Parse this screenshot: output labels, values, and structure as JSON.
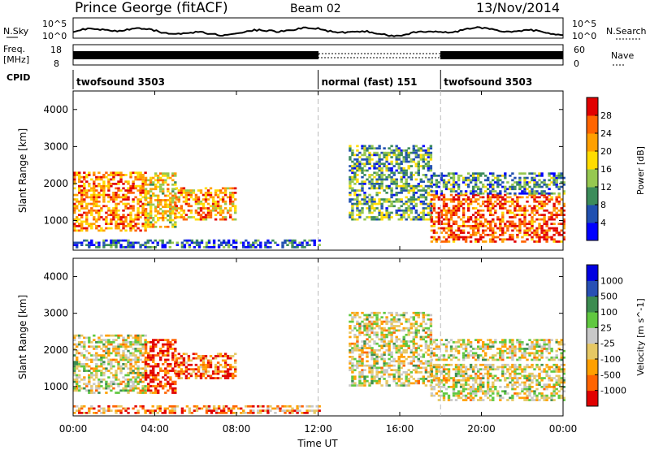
{
  "header": {
    "site": "Prince George (fitACF)",
    "beam": "Beam 02",
    "date": "13/Nov/2014"
  },
  "strip_left_labels": {
    "nsky": "N.Sky",
    "freq": "Freq.",
    "freq_unit": "[MHz]",
    "cpid": "CPID"
  },
  "strip_right_labels": {
    "nsearch": "N.Search",
    "nave": "Nave"
  },
  "strip_ticks": {
    "nsky_top": "10^5",
    "nsky_bottom": "10^0",
    "nsearch_top": "10^5",
    "nsearch_bottom": "10^0",
    "freq_top": "18",
    "freq_bottom": "8",
    "nave_top": "60",
    "nave_bottom": "0"
  },
  "cpid_segments": [
    {
      "label": "twofsound 3503",
      "start_h": 0,
      "end_h": 12
    },
    {
      "label": "normal (fast) 151",
      "start_h": 12,
      "end_h": 18
    },
    {
      "label": "twofsound 3503",
      "start_h": 18,
      "end_h": 24
    }
  ],
  "x_ticks": [
    "00:00",
    "04:00",
    "08:00",
    "12:00",
    "16:00",
    "20:00",
    "00:00"
  ],
  "x_label": "Time UT",
  "chart_data": [
    {
      "type": "heatmap",
      "title": "",
      "xlabel": "Time UT",
      "ylabel": "Slant Range [km]",
      "xlim_hours": [
        0,
        24
      ],
      "ylim": [
        200,
        4500
      ],
      "y_ticks": [
        1000,
        2000,
        3000,
        4000
      ],
      "colorbar": {
        "label": "Power [dB]",
        "ticks": [
          "4",
          "8",
          "12",
          "16",
          "20",
          "24",
          "28"
        ],
        "colors": [
          "#0000ff",
          "#2050b0",
          "#3c8c5a",
          "#96c850",
          "#ffdc00",
          "#ffa000",
          "#ff6400",
          "#e10000"
        ]
      },
      "regions": [
        {
          "t0": 0.0,
          "t1": 3.5,
          "r0": 700,
          "r1": 2300,
          "level": 0.75
        },
        {
          "t0": 3.5,
          "t1": 5.0,
          "r0": 800,
          "r1": 2300,
          "level": 0.6
        },
        {
          "t0": 5.0,
          "t1": 8.0,
          "r0": 1000,
          "r1": 1900,
          "level": 0.7
        },
        {
          "t0": 0.0,
          "t1": 12.0,
          "r0": 250,
          "r1": 450,
          "level": 0.2
        },
        {
          "t0": 13.5,
          "t1": 17.5,
          "r0": 1000,
          "r1": 3000,
          "level": 0.35
        },
        {
          "t0": 17.5,
          "t1": 24.0,
          "r0": 400,
          "r1": 1700,
          "level": 0.85
        },
        {
          "t0": 17.5,
          "t1": 24.0,
          "r0": 1700,
          "r1": 2300,
          "level": 0.3
        }
      ]
    },
    {
      "type": "heatmap",
      "title": "",
      "xlabel": "Time UT",
      "ylabel": "Slant Range [km]",
      "xlim_hours": [
        0,
        24
      ],
      "ylim": [
        200,
        4500
      ],
      "y_ticks": [
        1000,
        2000,
        3000,
        4000
      ],
      "colorbar": {
        "label": "Velocity [m s^-1]",
        "ticks": [
          "1000",
          "500",
          "100",
          "25",
          "-25",
          "-100",
          "-500",
          "-1000"
        ],
        "colors": [
          "#e10000",
          "#ff6400",
          "#ffa000",
          "#e6c864",
          "#c8c8c8",
          "#60c840",
          "#3c8c50",
          "#2850b4",
          "#0000e1"
        ]
      },
      "regions": [
        {
          "t0": 0.0,
          "t1": 3.5,
          "r0": 800,
          "r1": 2400,
          "level": 0.45
        },
        {
          "t0": 3.5,
          "t1": 5.0,
          "r0": 800,
          "r1": 2300,
          "level": 0.1
        },
        {
          "t0": 5.0,
          "t1": 8.0,
          "r0": 1200,
          "r1": 1900,
          "level": 0.2
        },
        {
          "t0": 0.0,
          "t1": 12.0,
          "r0": 250,
          "r1": 450,
          "level": 0.25
        },
        {
          "t0": 13.5,
          "t1": 17.5,
          "r0": 1000,
          "r1": 3000,
          "level": 0.45
        },
        {
          "t0": 17.5,
          "t1": 24.0,
          "r0": 600,
          "r1": 1600,
          "level": 0.45
        },
        {
          "t0": 17.5,
          "t1": 24.0,
          "r0": 1700,
          "r1": 2300,
          "level": 0.45
        }
      ]
    }
  ]
}
